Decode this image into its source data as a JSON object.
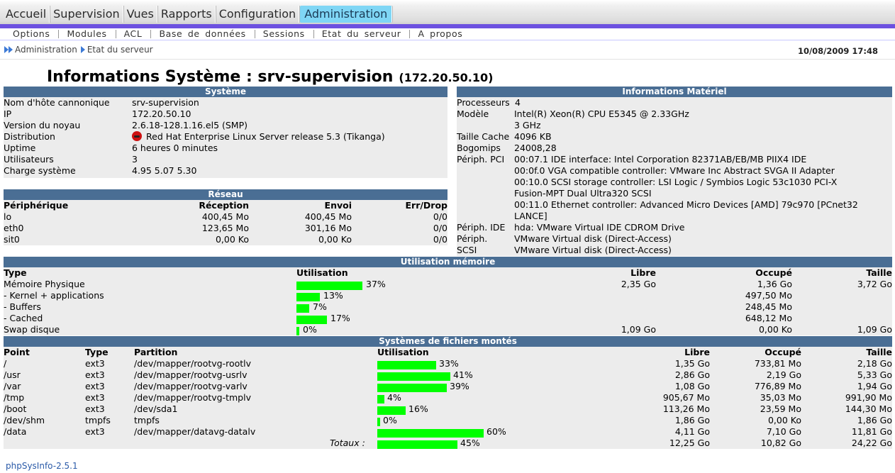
{
  "nav": {
    "tabs": [
      "Accueil",
      "Supervision",
      "Vues",
      "Rapports",
      "Configuration",
      "Administration"
    ],
    "active": "Administration",
    "subitems": [
      "Options",
      "Modules",
      "ACL",
      "Base de données",
      "Sessions",
      "Etat du serveur",
      "A propos"
    ]
  },
  "breadcrumb": {
    "root": "Administration",
    "current": "Etat du serveur",
    "date": "10/08/2009 17:48"
  },
  "title": {
    "host": "Informations Système : srv-supervision",
    "ip": "(172.20.50.10)"
  },
  "system": {
    "header": "Système",
    "rows": [
      {
        "label": "Nom d'hôte cannonique",
        "value": "srv-supervision"
      },
      {
        "label": "IP",
        "value": "172.20.50.10"
      },
      {
        "label": "Version du noyau",
        "value": "2.6.18-128.1.16.el5 (SMP)"
      },
      {
        "label": "Distribution",
        "value": "Red Hat Enterprise Linux Server release 5.3 (Tikanga)"
      },
      {
        "label": "Uptime",
        "value": "6 heures 0 minutes"
      },
      {
        "label": "Utilisateurs",
        "value": "3"
      },
      {
        "label": "Charge système",
        "value": "4.95 5.07 5.30"
      }
    ]
  },
  "network": {
    "header": "Réseau",
    "columns": [
      "Périphérique",
      "Réception",
      "Envoi",
      "Err/Drop"
    ],
    "rows": [
      [
        "lo",
        "400,45 Mo",
        "400,45 Mo",
        "0/0"
      ],
      [
        "eth0",
        "123,65 Mo",
        "301,16 Mo",
        "0/0"
      ],
      [
        "sit0",
        "0,00 Ko",
        "0,00 Ko",
        "0/0"
      ]
    ]
  },
  "hardware": {
    "header": "Informations Matériel",
    "rows": [
      {
        "label": "Processeurs",
        "value": "4"
      },
      {
        "label": "Modèle",
        "value": "Intel(R) Xeon(R) CPU E5345 @ 2.33GHz"
      },
      {
        "label": "",
        "value": "3 GHz"
      },
      {
        "label": "Taille Cache",
        "value": "4096 KB"
      },
      {
        "label": "Bogomips",
        "value": "24008,28"
      },
      {
        "label": "Périph. PCI",
        "value": "00:07.1 IDE interface: Intel Corporation 82371AB/EB/MB PIIX4 IDE"
      },
      {
        "label": "",
        "value": "00:0f.0 VGA compatible controller: VMware Inc Abstract SVGA II Adapter"
      },
      {
        "label": "",
        "value": "00:10.0 SCSI storage controller: LSI Logic / Symbios Logic 53c1030 PCI-X"
      },
      {
        "label": "",
        "value": "Fusion-MPT Dual Ultra320 SCSI"
      },
      {
        "label": "",
        "value": "00:11.0 Ethernet controller: Advanced Micro Devices [AMD] 79c970 [PCnet32"
      },
      {
        "label": "",
        "value": "LANCE]"
      },
      {
        "label": "Périph. IDE",
        "value": "hda: VMware Virtual IDE CDROM Drive"
      },
      {
        "label": "Périph.",
        "value": "VMware Virtual disk (Direct-Access)"
      },
      {
        "label": "SCSI",
        "value": "VMware Virtual disk (Direct-Access)"
      }
    ]
  },
  "memory": {
    "header": "Utilisation mémoire",
    "columns": [
      "Type",
      "Utilisation",
      "Libre",
      "Occupé",
      "Taille"
    ],
    "rows": [
      {
        "type": "Mémoire Physique",
        "pct": 37,
        "pct_label": "37%",
        "free": "2,35 Go",
        "used": "1,36 Go",
        "size": "3,72 Go"
      },
      {
        "type": "- Kernel + applications",
        "pct": 13,
        "pct_label": "13%",
        "free": "",
        "used": "497,50 Mo",
        "size": ""
      },
      {
        "type": "- Buffers",
        "pct": 7,
        "pct_label": "7%",
        "free": "",
        "used": "248,45 Mo",
        "size": ""
      },
      {
        "type": "- Cached",
        "pct": 17,
        "pct_label": "17%",
        "free": "",
        "used": "648,12 Mo",
        "size": ""
      },
      {
        "type": "Swap disque",
        "pct": 0,
        "pct_label": "0%",
        "free": "1,09 Go",
        "used": "0,00 Ko",
        "size": "1,09 Go"
      }
    ]
  },
  "filesystems": {
    "header": "Systèmes de fichiers montés",
    "columns": [
      "Point",
      "Type",
      "Partition",
      "Utilisation",
      "Libre",
      "Occupé",
      "Taille"
    ],
    "rows": [
      {
        "point": "/",
        "type": "ext3",
        "partition": "/dev/mapper/rootvg-rootlv",
        "pct": 33,
        "pct_label": "33%",
        "free": "1,35 Go",
        "used": "733,81 Mo",
        "size": "2,18 Go"
      },
      {
        "point": "/usr",
        "type": "ext3",
        "partition": "/dev/mapper/rootvg-usrlv",
        "pct": 41,
        "pct_label": "41%",
        "free": "2,86 Go",
        "used": "2,19 Go",
        "size": "5,33 Go"
      },
      {
        "point": "/var",
        "type": "ext3",
        "partition": "/dev/mapper/rootvg-varlv",
        "pct": 39,
        "pct_label": "39%",
        "free": "1,08 Go",
        "used": "776,89 Mo",
        "size": "1,94 Go"
      },
      {
        "point": "/tmp",
        "type": "ext3",
        "partition": "/dev/mapper/rootvg-tmplv",
        "pct": 4,
        "pct_label": "4%",
        "free": "905,67 Mo",
        "used": "35,03 Mo",
        "size": "991,90 Mo"
      },
      {
        "point": "/boot",
        "type": "ext3",
        "partition": "/dev/sda1",
        "pct": 16,
        "pct_label": "16%",
        "free": "113,26 Mo",
        "used": "23,59 Mo",
        "size": "144,30 Mo"
      },
      {
        "point": "/dev/shm",
        "type": "tmpfs",
        "partition": "tmpfs",
        "pct": 0,
        "pct_label": "0%",
        "free": "1,86 Go",
        "used": "0,00 Ko",
        "size": "1,86 Go"
      },
      {
        "point": "/data",
        "type": "ext3",
        "partition": "/dev/mapper/datavg-datalv",
        "pct": 60,
        "pct_label": "60%",
        "free": "4,11 Go",
        "used": "7,10 Go",
        "size": "11,81 Go"
      }
    ],
    "totals": {
      "label": "Totaux :",
      "pct": 45,
      "pct_label": "45%",
      "free": "12,25 Go",
      "used": "10,82 Go",
      "size": "24,22 Go"
    }
  },
  "footer": "phpSysInfo-2.5.1",
  "colors": {
    "header": "#4a6e94",
    "bar": "#00ff00",
    "panel": "#ececec",
    "accent_tab": "#7fd6f5",
    "menu_bar": "#6c51e0"
  }
}
